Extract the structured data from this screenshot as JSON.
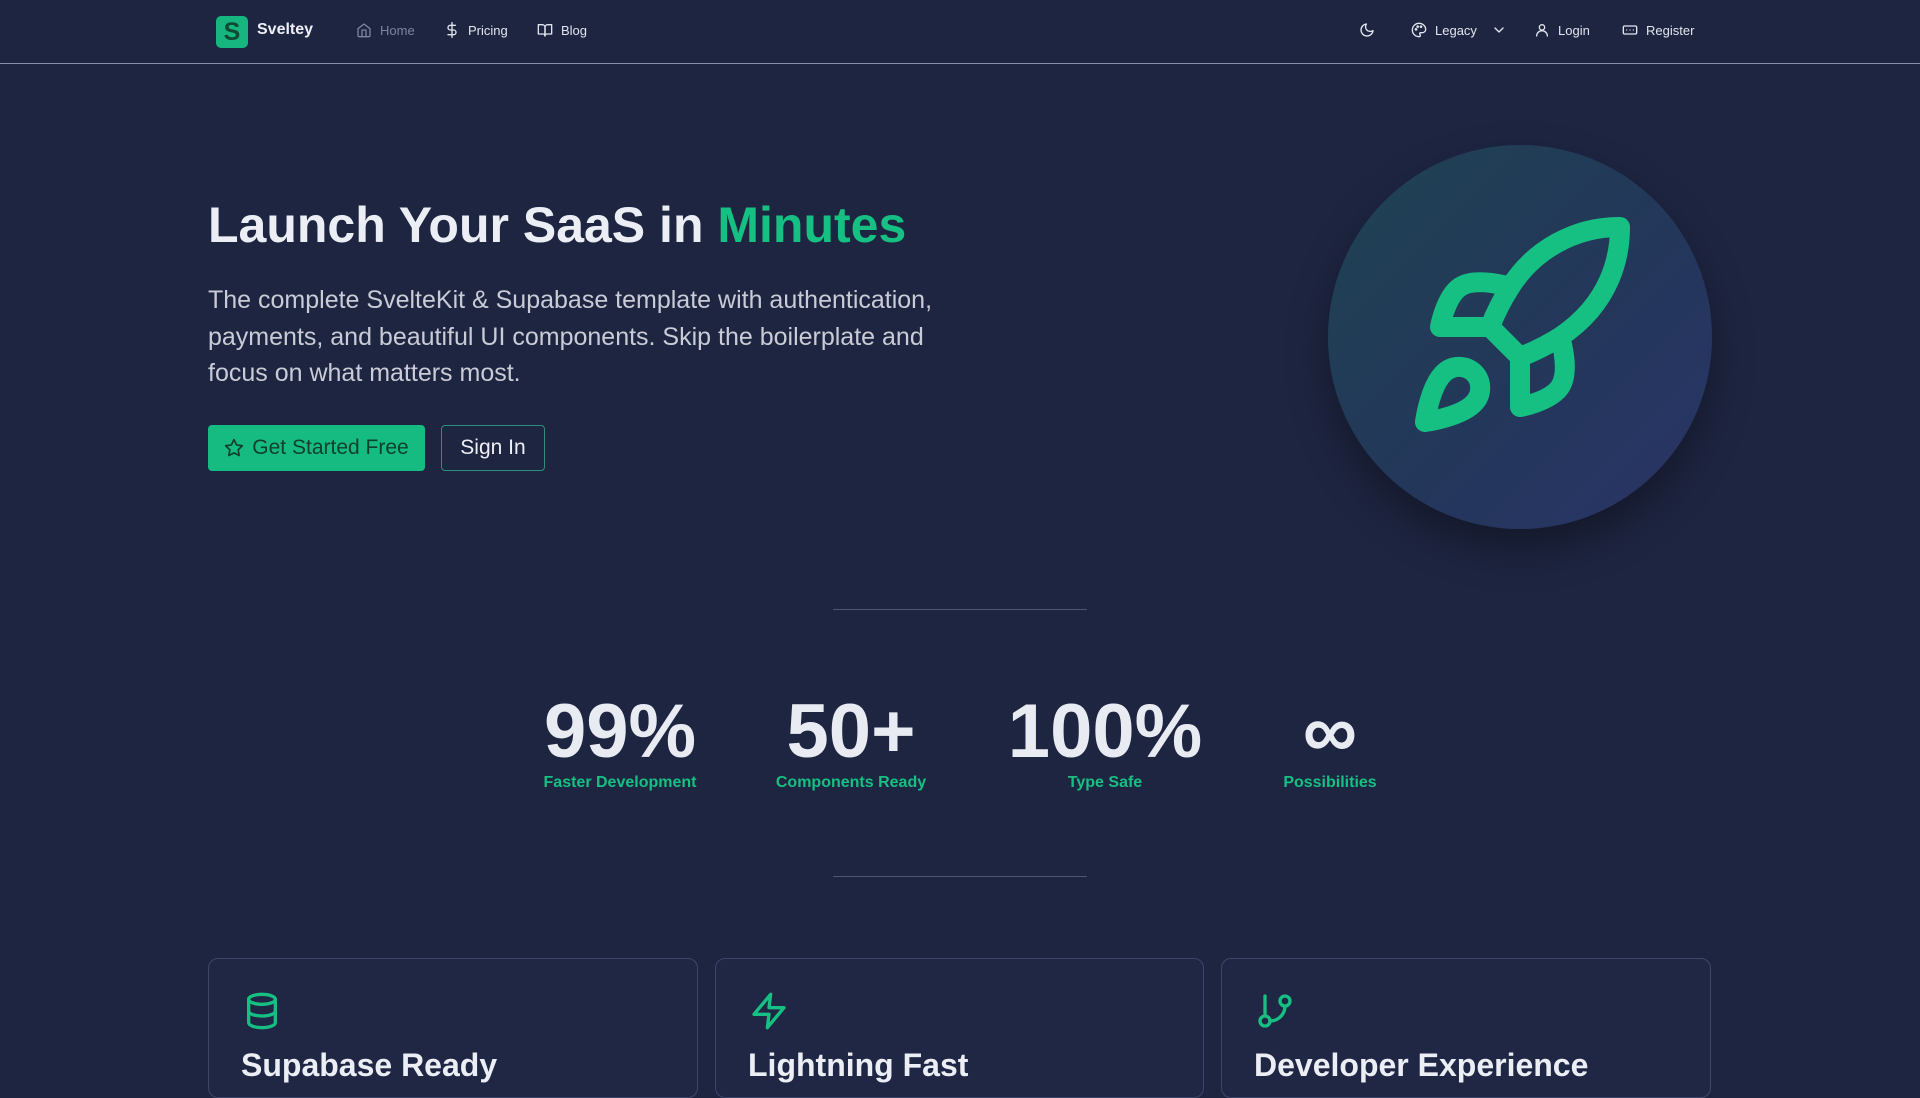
{
  "nav": {
    "logo_letter": "S",
    "brand": "Sveltey",
    "links": [
      {
        "label": "Home",
        "icon": "home-icon"
      },
      {
        "label": "Pricing",
        "icon": "dollar-icon"
      },
      {
        "label": "Blog",
        "icon": "book-icon"
      }
    ],
    "theme_toggle_icon": "moon-icon",
    "theme_select": "Legacy",
    "login": "Login",
    "register": "Register"
  },
  "hero": {
    "title_main": "Launch Your SaaS in ",
    "title_accent": "Minutes",
    "description": "The complete SvelteKit & Supabase template with authentication, payments, and beautiful UI components. Skip the boilerplate and focus on what matters most.",
    "primary_cta": "Get Started Free",
    "secondary_cta": "Sign In",
    "illustration_icon": "rocket-icon"
  },
  "stats": [
    {
      "value": "99%",
      "label": "Faster Development"
    },
    {
      "value": "50+",
      "label": "Components Ready"
    },
    {
      "value": "100%",
      "label": "Type Safe"
    },
    {
      "value": "∞",
      "label": "Possibilities"
    }
  ],
  "features": [
    {
      "title": "Supabase Ready",
      "icon": "database-icon"
    },
    {
      "title": "Lightning Fast",
      "icon": "zap-icon"
    },
    {
      "title": "Developer Experience",
      "icon": "git-branch-icon"
    }
  ],
  "colors": {
    "background": "#1e2541",
    "accent": "#16c083"
  }
}
